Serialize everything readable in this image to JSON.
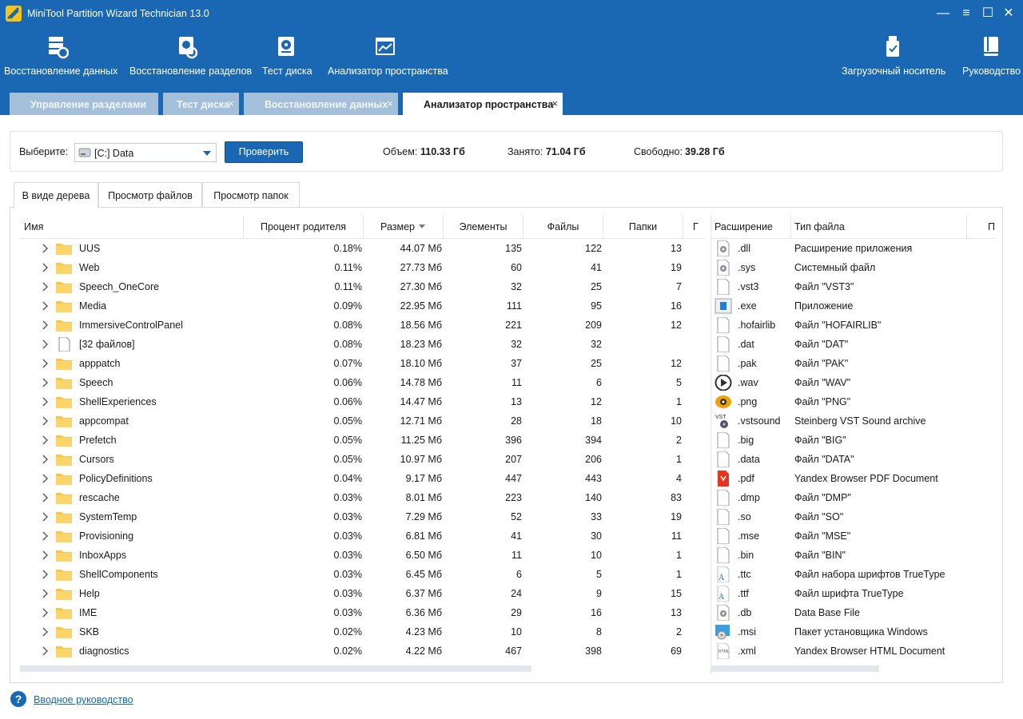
{
  "window": {
    "title": "MiniTool Partition Wizard Technician 13.0"
  },
  "ribbon": [
    {
      "label": "Восстановление данных",
      "icon": "data-recovery-icon"
    },
    {
      "label": "Восстановление разделов",
      "icon": "partition-recovery-icon"
    },
    {
      "label": "Тест диска",
      "icon": "disk-test-icon"
    },
    {
      "label": "Анализатор пространства",
      "icon": "space-analyzer-icon"
    },
    {
      "label": "Загрузочный носитель",
      "icon": "bootable-media-icon"
    },
    {
      "label": "Руководство",
      "icon": "manual-icon"
    }
  ],
  "tabs": [
    {
      "label": "Управление разделами",
      "active": false
    },
    {
      "label": "Тест диска",
      "active": false,
      "close": "×"
    },
    {
      "label": "Восстановление данных",
      "active": false,
      "close": "×"
    },
    {
      "label": "Анализатор пространства",
      "active": true,
      "close": "×"
    }
  ],
  "toolbar": {
    "select_label": "Выберите:",
    "drive_value": "[C:] Data",
    "check_button": "Проверить",
    "total_label": "Объем:",
    "total_value": "110.33 Гб",
    "used_label": "Занято:",
    "used_value": "71.04 Гб",
    "free_label": "Свободно:",
    "free_value": "39.28 Гб"
  },
  "view_tabs": [
    {
      "label": "В виде дерева",
      "active": true
    },
    {
      "label": "Просмотр файлов",
      "active": false
    },
    {
      "label": "Просмотр папок",
      "active": false
    }
  ],
  "tree": {
    "columns": {
      "name": "Имя",
      "percent": "Процент родителя",
      "size": "Размер",
      "items": "Элементы",
      "files": "Файлы",
      "folders": "Папки",
      "extra": "Г"
    },
    "rows": [
      {
        "name": "UUS",
        "percent": "0.18%",
        "size": "44.07 Мб",
        "items": "135",
        "files": "122",
        "folders": "13",
        "type": "folder"
      },
      {
        "name": "Web",
        "percent": "0.11%",
        "size": "27.73 Мб",
        "items": "60",
        "files": "41",
        "folders": "19",
        "type": "folder"
      },
      {
        "name": "Speech_OneCore",
        "percent": "0.11%",
        "size": "27.30 Мб",
        "items": "32",
        "files": "25",
        "folders": "7",
        "type": "folder"
      },
      {
        "name": "Media",
        "percent": "0.09%",
        "size": "22.95 Мб",
        "items": "111",
        "files": "95",
        "folders": "16",
        "type": "folder"
      },
      {
        "name": "ImmersiveControlPanel",
        "percent": "0.08%",
        "size": "18.56 Мб",
        "items": "221",
        "files": "209",
        "folders": "12",
        "type": "folder"
      },
      {
        "name": "[32 файлов]",
        "percent": "0.08%",
        "size": "18.23 Мб",
        "items": "32",
        "files": "32",
        "folders": "",
        "type": "file"
      },
      {
        "name": "apppatch",
        "percent": "0.07%",
        "size": "18.10 Мб",
        "items": "37",
        "files": "25",
        "folders": "12",
        "type": "folder"
      },
      {
        "name": "Speech",
        "percent": "0.06%",
        "size": "14.78 Мб",
        "items": "11",
        "files": "6",
        "folders": "5",
        "type": "folder"
      },
      {
        "name": "ShellExperiences",
        "percent": "0.06%",
        "size": "14.47 Мб",
        "items": "13",
        "files": "12",
        "folders": "1",
        "type": "folder"
      },
      {
        "name": "appcompat",
        "percent": "0.05%",
        "size": "12.71 Мб",
        "items": "28",
        "files": "18",
        "folders": "10",
        "type": "folder"
      },
      {
        "name": "Prefetch",
        "percent": "0.05%",
        "size": "11.25 Мб",
        "items": "396",
        "files": "394",
        "folders": "2",
        "type": "folder"
      },
      {
        "name": "Cursors",
        "percent": "0.05%",
        "size": "10.97 Мб",
        "items": "207",
        "files": "206",
        "folders": "1",
        "type": "folder"
      },
      {
        "name": "PolicyDefinitions",
        "percent": "0.04%",
        "size": "9.17 Мб",
        "items": "447",
        "files": "443",
        "folders": "4",
        "type": "folder"
      },
      {
        "name": "rescache",
        "percent": "0.03%",
        "size": "8.01 Мб",
        "items": "223",
        "files": "140",
        "folders": "83",
        "type": "folder"
      },
      {
        "name": "SystemTemp",
        "percent": "0.03%",
        "size": "7.29 Мб",
        "items": "52",
        "files": "33",
        "folders": "19",
        "type": "folder"
      },
      {
        "name": "Provisioning",
        "percent": "0.03%",
        "size": "6.81 Мб",
        "items": "41",
        "files": "30",
        "folders": "11",
        "type": "folder"
      },
      {
        "name": "InboxApps",
        "percent": "0.03%",
        "size": "6.50 Мб",
        "items": "11",
        "files": "10",
        "folders": "1",
        "type": "folder"
      },
      {
        "name": "ShellComponents",
        "percent": "0.03%",
        "size": "6.45 Мб",
        "items": "6",
        "files": "5",
        "folders": "1",
        "type": "folder"
      },
      {
        "name": "Help",
        "percent": "0.03%",
        "size": "6.37 Мб",
        "items": "24",
        "files": "9",
        "folders": "15",
        "type": "folder"
      },
      {
        "name": "IME",
        "percent": "0.03%",
        "size": "6.36 Мб",
        "items": "29",
        "files": "16",
        "folders": "13",
        "type": "folder"
      },
      {
        "name": "SKB",
        "percent": "0.02%",
        "size": "4.23 Мб",
        "items": "10",
        "files": "8",
        "folders": "2",
        "type": "folder"
      },
      {
        "name": "diagnostics",
        "percent": "0.02%",
        "size": "4.22 Мб",
        "items": "467",
        "files": "398",
        "folders": "69",
        "type": "folder"
      }
    ]
  },
  "extensions": {
    "columns": {
      "ext": "Расширение",
      "type": "Тип файла",
      "extra": "Пр"
    },
    "rows": [
      {
        "ext": ".dll",
        "type": "Расширение приложения",
        "icon": "gear"
      },
      {
        "ext": ".sys",
        "type": "Системный файл",
        "icon": "gear"
      },
      {
        "ext": ".vst3",
        "type": "Файл \"VST3\"",
        "icon": "blank"
      },
      {
        "ext": ".exe",
        "type": "Приложение",
        "icon": "app"
      },
      {
        "ext": ".hofairlib",
        "type": "Файл \"HOFAIRLIB\"",
        "icon": "blank"
      },
      {
        "ext": ".dat",
        "type": "Файл \"DAT\"",
        "icon": "blank"
      },
      {
        "ext": ".pak",
        "type": "Файл \"PAK\"",
        "icon": "blank"
      },
      {
        "ext": ".wav",
        "type": "Файл \"WAV\"",
        "icon": "play"
      },
      {
        "ext": ".png",
        "type": "Файл \"PNG\"",
        "icon": "eye"
      },
      {
        "ext": ".vstsound",
        "type": "Steinberg VST Sound archive",
        "icon": "vst"
      },
      {
        "ext": ".big",
        "type": "Файл \"BIG\"",
        "icon": "blank"
      },
      {
        "ext": ".data",
        "type": "Файл \"DATA\"",
        "icon": "blank"
      },
      {
        "ext": ".pdf",
        "type": "Yandex Browser PDF Document",
        "icon": "pdf"
      },
      {
        "ext": ".dmp",
        "type": "Файл \"DMP\"",
        "icon": "blank"
      },
      {
        "ext": ".so",
        "type": "Файл \"SO\"",
        "icon": "blank"
      },
      {
        "ext": ".mse",
        "type": "Файл \"MSE\"",
        "icon": "blank"
      },
      {
        "ext": ".bin",
        "type": "Файл \"BIN\"",
        "icon": "blank"
      },
      {
        "ext": ".ttc",
        "type": "Файл набора шрифтов TrueType",
        "icon": "font"
      },
      {
        "ext": ".ttf",
        "type": "Файл шрифта TrueType",
        "icon": "font"
      },
      {
        "ext": ".db",
        "type": "Data Base File",
        "icon": "gear"
      },
      {
        "ext": ".msi",
        "type": "Пакет установщика Windows",
        "icon": "msi"
      },
      {
        "ext": ".xml",
        "type": "Yandex Browser HTML Document",
        "icon": "html"
      }
    ]
  },
  "footer": {
    "link": "Вводное руководство"
  },
  "colors": {
    "accent": "#1a67b3",
    "tab_inactive": "#a3bfd9",
    "folder": "#f7c64b"
  }
}
